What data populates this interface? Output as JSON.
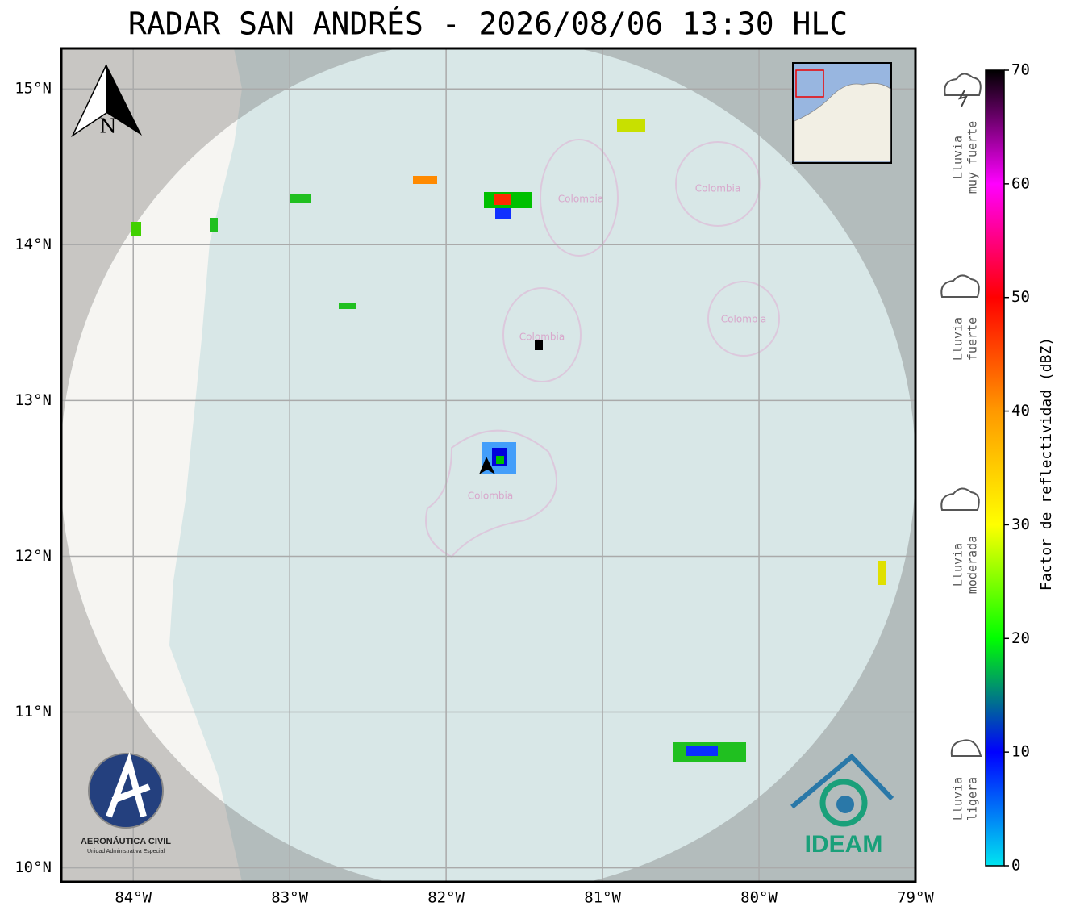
{
  "title": "RADAR SAN ANDRÉS - 2026/08/06 13:30 HLC",
  "map": {
    "xlim": [
      -84.46,
      -79.0
    ],
    "ylim": [
      9.91,
      15.26
    ],
    "xticks": [
      {
        "value": -84,
        "label": "84°W"
      },
      {
        "value": -83,
        "label": "83°W"
      },
      {
        "value": -82,
        "label": "82°W"
      },
      {
        "value": -81,
        "label": "81°W"
      },
      {
        "value": -80,
        "label": "80°W"
      },
      {
        "value": -79,
        "label": "79°W"
      }
    ],
    "yticks": [
      {
        "value": 10,
        "label": "10°N"
      },
      {
        "value": 11,
        "label": "11°N"
      },
      {
        "value": 12,
        "label": "12°N"
      },
      {
        "value": 13,
        "label": "13°N"
      },
      {
        "value": 14,
        "label": "14°N"
      },
      {
        "value": 15,
        "label": "15°N"
      }
    ],
    "grid": true,
    "place_labels": [
      "Colombia",
      "Colombia",
      "Colombia",
      "Colombia",
      "Colombia"
    ],
    "north": "N"
  },
  "colorbar": {
    "label": "Factor de reflectividad (dBZ)",
    "lim": [
      0,
      70
    ],
    "ticks": [
      0,
      10,
      20,
      30,
      40,
      50,
      60,
      70
    ],
    "colors": [
      "#00e5f0",
      "#0000ff",
      "#00ff00",
      "#ffff00",
      "#ff9900",
      "#ff0000",
      "#ff00ff",
      "#000000"
    ]
  },
  "rain_levels": [
    [
      "Lluvia",
      "muy fuerte"
    ],
    [
      "Lluvia",
      "fuerte"
    ],
    [
      "Lluvia",
      "moderada"
    ],
    [
      "Lluvia",
      "ligera"
    ]
  ],
  "logos": {
    "aerocivil": "AERONÁUTICA CIVIL",
    "aerocivil_sub": "Unidad Administrativa Especial",
    "ideam": "IDEAM"
  }
}
